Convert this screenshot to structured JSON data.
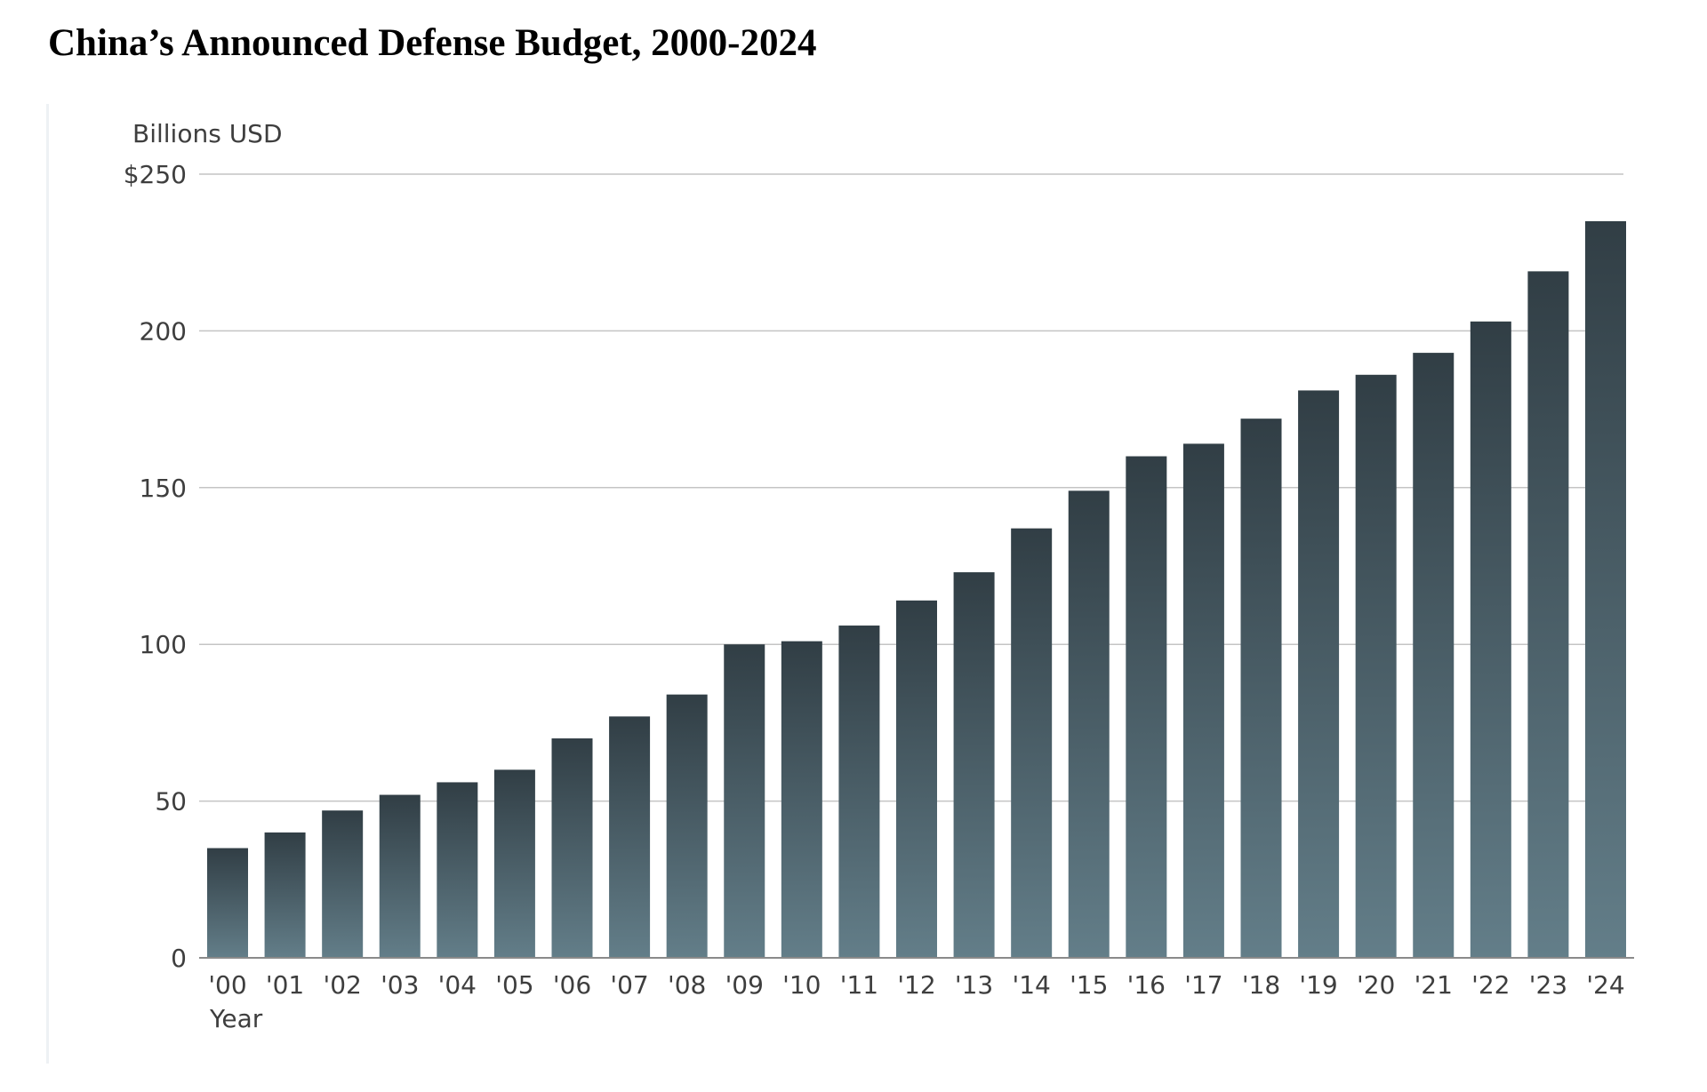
{
  "chart_data": {
    "type": "bar",
    "title": "China’s Announced Defense Budget, 2000-2024",
    "ylabel": "Billions USD",
    "xlabel": "Year",
    "ylim": [
      0,
      250
    ],
    "yticks": [
      0,
      50,
      100,
      150,
      200,
      250
    ],
    "ytick_labels": [
      "0",
      "50",
      "100",
      "150",
      "200",
      "$250"
    ],
    "grid": true,
    "legend": "none",
    "categories": [
      "'00",
      "'01",
      "'02",
      "'03",
      "'04",
      "'05",
      "'06",
      "'07",
      "'08",
      "'09",
      "'10",
      "'11",
      "'12",
      "'13",
      "'14",
      "'15",
      "'16",
      "'17",
      "'18",
      "'19",
      "'20",
      "'21",
      "'22",
      "'23",
      "'24"
    ],
    "values": [
      35,
      40,
      47,
      52,
      56,
      60,
      70,
      77,
      84,
      100,
      101,
      106,
      114,
      123,
      137,
      149,
      160,
      164,
      172,
      181,
      186,
      193,
      203,
      219,
      235
    ],
    "colors": {
      "bar_top": "#313e45",
      "bar_bottom": "#637e89",
      "grid": "#c4c4c4",
      "axis": "#8a8a8a",
      "text": "#3e3e3e"
    }
  }
}
